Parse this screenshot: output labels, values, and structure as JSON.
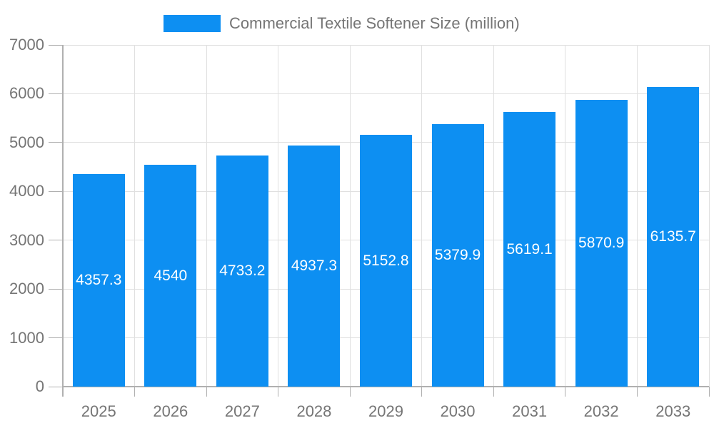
{
  "chart_data": {
    "type": "bar",
    "title": "Commercial Textile Softener Size (million)",
    "categories": [
      "2025",
      "2026",
      "2027",
      "2028",
      "2029",
      "2030",
      "2031",
      "2032",
      "2033"
    ],
    "values": [
      4357.3,
      4540,
      4733.2,
      4937.3,
      5152.8,
      5379.9,
      5619.1,
      5870.9,
      6135.7
    ],
    "value_labels": [
      "4357.3",
      "4540",
      "4733.2",
      "4937.3",
      "5152.8",
      "5379.9",
      "5619.1",
      "5870.9",
      "6135.7"
    ],
    "xlabel": "",
    "ylabel": "",
    "ylim": [
      0,
      7000
    ],
    "y_ticks": [
      0,
      1000,
      2000,
      3000,
      4000,
      5000,
      6000,
      7000
    ],
    "grid": true,
    "legend_position": "top",
    "value_label_position": "inside-center",
    "colors": {
      "bar": "#0d8ff2",
      "bar_label": "#ffffff",
      "axis_text": "#757575",
      "grid_line": "#e0e0e0",
      "axis_line": "#b0b0b0",
      "tick_line": "#b0b0b0",
      "background": "#ffffff"
    }
  }
}
